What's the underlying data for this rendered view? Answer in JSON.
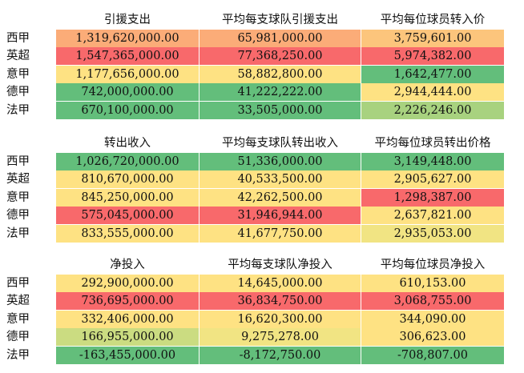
{
  "colors": {
    "red": "#f8696b",
    "red_light": "#fa9a70",
    "orange": "#fbac78",
    "orange_light": "#fcc57c",
    "yellow": "#fee283",
    "yellow_light": "#f1e483",
    "lime": "#cbdc81",
    "green_light": "#a8d27f",
    "green": "#63be7b"
  },
  "leagues": [
    "西甲",
    "英超",
    "意甲",
    "德甲",
    "法甲"
  ],
  "tables": [
    {
      "headers": [
        "引援支出",
        "平均每支球队引援支出",
        "平均每位球员转入价"
      ],
      "rows": [
        {
          "values": [
            "1,319,620,000.00",
            "65,981,000.00",
            "3,759,601.00"
          ],
          "colors": [
            "#fbac78",
            "#fbac78",
            "#fcc57c"
          ]
        },
        {
          "values": [
            "1,547,365,000.00",
            "77,368,250.00",
            "5,974,382.00"
          ],
          "colors": [
            "#f8696b",
            "#f8696b",
            "#f8696b"
          ]
        },
        {
          "values": [
            "1,177,656,000.00",
            "58,882,800.00",
            "1,642,477.00"
          ],
          "colors": [
            "#fee283",
            "#fee283",
            "#63be7b"
          ]
        },
        {
          "values": [
            "742,000,000.00",
            "41,222,222.00",
            "2,944,444.00"
          ],
          "colors": [
            "#63be7b",
            "#63be7b",
            "#fee283"
          ]
        },
        {
          "values": [
            "670,100,000.00",
            "33,505,000.00",
            "2,226,246.00"
          ],
          "colors": [
            "#63be7b",
            "#63be7b",
            "#a8d27f"
          ]
        }
      ]
    },
    {
      "headers": [
        "转出收入",
        "平均每支球队转出收入",
        "平均每位球员转出价格"
      ],
      "rows": [
        {
          "values": [
            "1,026,720,000.00",
            "51,336,000.00",
            "3,149,448.00"
          ],
          "colors": [
            "#63be7b",
            "#63be7b",
            "#63be7b"
          ]
        },
        {
          "values": [
            "810,670,000.00",
            "40,533,500.00",
            "2,905,627.00"
          ],
          "colors": [
            "#fee283",
            "#fee283",
            "#fee283"
          ]
        },
        {
          "values": [
            "845,250,000.00",
            "42,262,500.00",
            "1,298,387.00"
          ],
          "colors": [
            "#fee283",
            "#fee283",
            "#f8696b"
          ]
        },
        {
          "values": [
            "575,045,000.00",
            "31,946,944.00",
            "2,637,821.00"
          ],
          "colors": [
            "#f8696b",
            "#f8696b",
            "#fee283"
          ]
        },
        {
          "values": [
            "833,555,000.00",
            "41,677,750.00",
            "2,935,053.00"
          ],
          "colors": [
            "#fee283",
            "#fee283",
            "#f1e483"
          ]
        }
      ]
    },
    {
      "headers": [
        "净投入",
        "平均每支球队净投入",
        "平均每位球员净投入"
      ],
      "rows": [
        {
          "values": [
            "292,900,000.00",
            "14,645,000.00",
            "610,153.00"
          ],
          "colors": [
            "#fee283",
            "#fee283",
            "#fee283"
          ]
        },
        {
          "values": [
            "736,695,000.00",
            "36,834,750.00",
            "3,068,755.00"
          ],
          "colors": [
            "#f8696b",
            "#f8696b",
            "#f8696b"
          ]
        },
        {
          "values": [
            "332,406,000.00",
            "16,620,300.00",
            "344,090.00"
          ],
          "colors": [
            "#fee283",
            "#fee283",
            "#fee283"
          ]
        },
        {
          "values": [
            "166,955,000.00",
            "9,275,278.00",
            "306,623.00"
          ],
          "colors": [
            "#cbdc81",
            "#f1e483",
            "#fee283"
          ]
        },
        {
          "values": [
            "-163,455,000.00",
            "-8,172,750.00",
            "-708,807.00"
          ],
          "colors": [
            "#63be7b",
            "#63be7b",
            "#63be7b"
          ]
        }
      ]
    }
  ]
}
